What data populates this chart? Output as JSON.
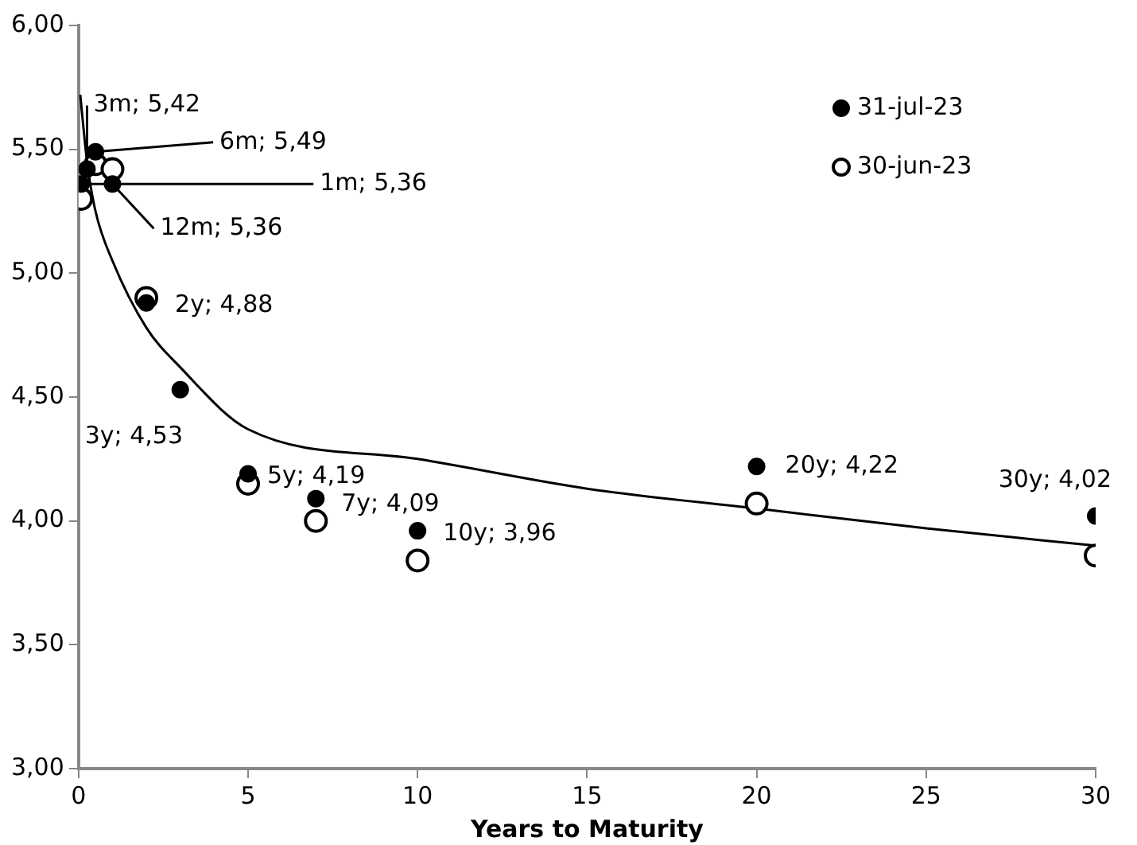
{
  "chart_data": {
    "type": "scatter",
    "xlabel": "Years to Maturity",
    "x": [
      0.08,
      0.25,
      0.5,
      1,
      2,
      3,
      5,
      7,
      10,
      20,
      30
    ],
    "series": [
      {
        "name": "31-jul-23",
        "color": "#000000",
        "marker": "circle",
        "values": [
          5.36,
          5.42,
          5.49,
          5.36,
          4.88,
          4.53,
          4.19,
          4.09,
          3.96,
          4.22,
          4.02
        ],
        "value_labels": [
          "1m; 5,36",
          "3m; 5,42",
          "6m; 5,49",
          "12m; 5,36",
          "2y; 4,88",
          "3y; 4,53",
          "5y; 4,19",
          "7y; 4,09",
          "10y; 3,96",
          "20y; 4,22",
          "30y; 4,02"
        ]
      },
      {
        "name": "30-jun-23",
        "color": "#ffffff",
        "marker": "circle",
        "values": [
          5.3,
          null,
          5.44,
          5.42,
          4.9,
          null,
          4.15,
          4.0,
          3.84,
          4.07,
          3.86
        ]
      },
      {
        "type": "line",
        "color": "#000000",
        "marker": "none",
        "x": [
          0.05,
          0.25,
          0.5,
          1,
          2,
          3,
          5,
          10,
          15,
          20,
          25,
          30
        ],
        "values": [
          5.72,
          5.45,
          5.25,
          5.05,
          4.78,
          4.62,
          4.37,
          4.25,
          4.13,
          4.05,
          3.97,
          3.9
        ]
      }
    ],
    "xlim": [
      0,
      30
    ],
    "xticks": [
      0,
      5,
      10,
      15,
      20,
      25,
      30
    ],
    "ylim": [
      3,
      6
    ],
    "yticks": [
      {
        "value": 3,
        "label": "3,00"
      },
      {
        "value": 3.5,
        "label": "3,50"
      },
      {
        "value": 4,
        "label": "4,00"
      },
      {
        "value": 4.5,
        "label": "4,50"
      },
      {
        "value": 5,
        "label": "5,00"
      },
      {
        "value": 5.5,
        "label": "5,50"
      },
      {
        "value": 6,
        "label": "6,00"
      }
    ],
    "grid": false,
    "legend": "top right"
  }
}
